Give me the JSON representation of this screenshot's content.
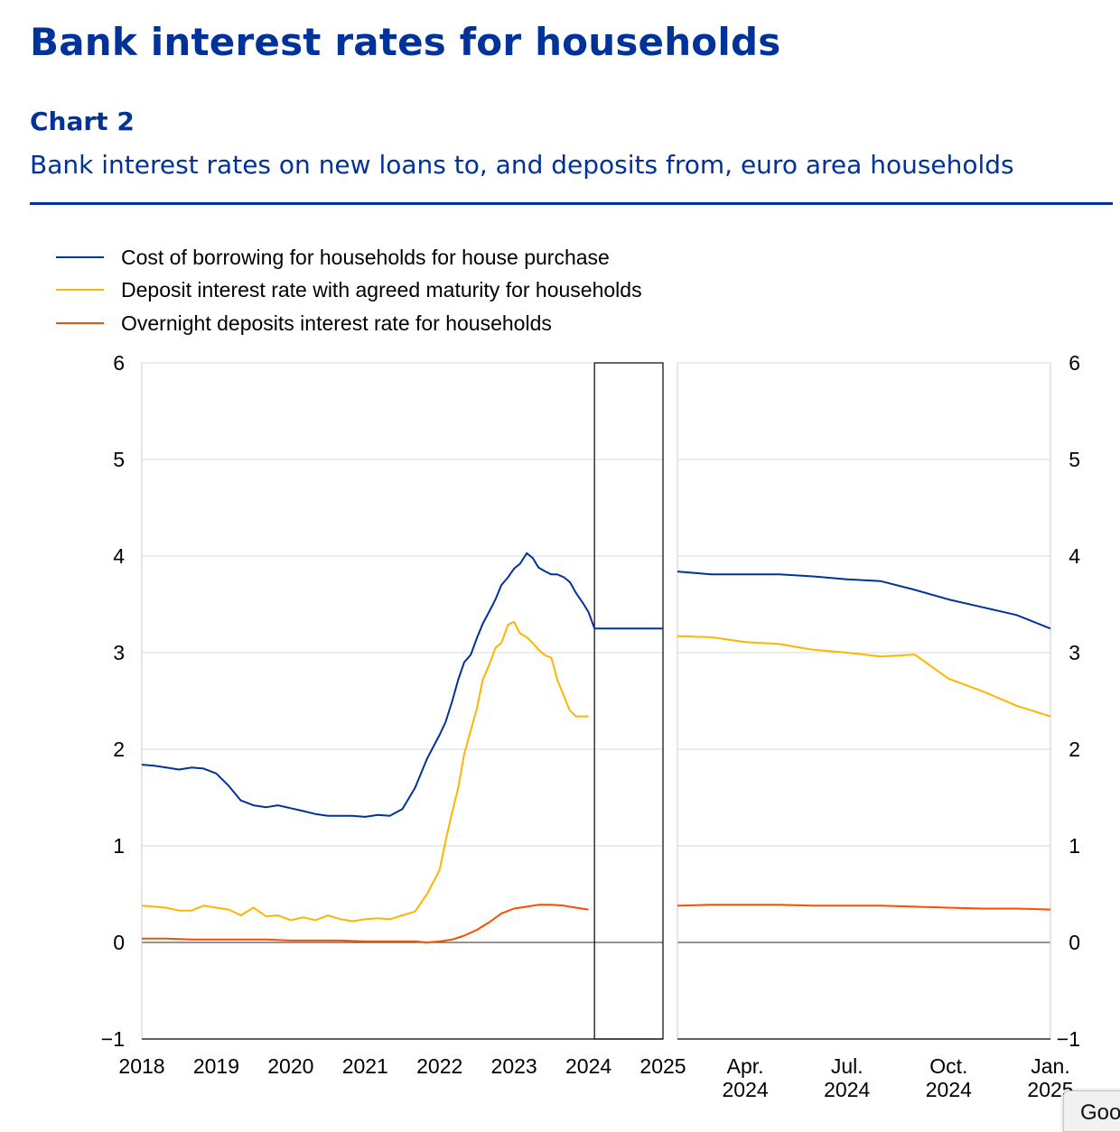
{
  "page": {
    "title": "Bank interest rates for households",
    "chart_label": "Chart 2",
    "chart_subtitle": "Bank interest rates on new loans to, and deposits from, euro area households"
  },
  "popup": {
    "label": "Goo"
  },
  "colors": {
    "borrowing": "#003299",
    "deposit_agreed": "#FFB400",
    "overnight": "#FF4B00",
    "grid": "#d9d9d9",
    "axis": "#000000"
  },
  "chart_data": {
    "type": "line",
    "title": "Bank interest rates on new loans to, and deposits from, euro area households",
    "xlabel": "",
    "ylabel": "",
    "ylim": [
      -1,
      6
    ],
    "yticks": [
      -1,
      0,
      1,
      2,
      3,
      4,
      5,
      6
    ],
    "grid": true,
    "legend_position": "top-left",
    "panels": [
      {
        "name": "full-period",
        "xlim": [
          2018.0,
          2025.0
        ],
        "xtick_labels": [
          "2018",
          "2019",
          "2020",
          "2021",
          "2022",
          "2023",
          "2024",
          "2025"
        ],
        "xtick_values": [
          2018,
          2019,
          2020,
          2021,
          2022,
          2023,
          2024,
          2025
        ],
        "highlight_range": [
          2024.08,
          2025.0
        ],
        "series": [
          {
            "name": "Cost of borrowing for households for house purchase",
            "color_key": "borrowing",
            "x": [
              2018.0,
              2018.17,
              2018.33,
              2018.5,
              2018.67,
              2018.83,
              2019.0,
              2019.17,
              2019.33,
              2019.5,
              2019.67,
              2019.83,
              2020.0,
              2020.17,
              2020.33,
              2020.5,
              2020.67,
              2020.83,
              2021.0,
              2021.17,
              2021.33,
              2021.5,
              2021.67,
              2021.83,
              2022.0,
              2022.08,
              2022.17,
              2022.25,
              2022.33,
              2022.42,
              2022.5,
              2022.58,
              2022.67,
              2022.75,
              2022.83,
              2022.92,
              2023.0,
              2023.08,
              2023.17,
              2023.25,
              2023.33,
              2023.42,
              2023.5,
              2023.58,
              2023.67,
              2023.75,
              2023.83,
              2023.92,
              2024.0,
              2024.08,
              2024.17,
              2024.25,
              2024.33,
              2024.42,
              2024.5,
              2024.58,
              2024.67,
              2024.75,
              2024.83,
              2024.92,
              2025.0
            ],
            "values": [
              1.84,
              1.83,
              1.81,
              1.79,
              1.81,
              1.8,
              1.75,
              1.62,
              1.47,
              1.42,
              1.4,
              1.42,
              1.39,
              1.36,
              1.33,
              1.31,
              1.31,
              1.31,
              1.3,
              1.32,
              1.31,
              1.38,
              1.6,
              1.9,
              2.15,
              2.28,
              2.5,
              2.72,
              2.9,
              2.98,
              3.15,
              3.3,
              3.43,
              3.55,
              3.7,
              3.78,
              3.87,
              3.92,
              4.03,
              3.98,
              3.88,
              3.84,
              3.81,
              3.81,
              3.78,
              3.73,
              3.62,
              3.52,
              3.42,
              3.25,
              3.25,
              3.25,
              3.25,
              3.25,
              3.25,
              3.25,
              3.25,
              3.25,
              3.25,
              3.25,
              3.25
            ]
          },
          {
            "name": "Deposit interest rate with agreed maturity for households",
            "color_key": "deposit_agreed",
            "x": [
              2018.0,
              2018.17,
              2018.33,
              2018.5,
              2018.67,
              2018.83,
              2019.0,
              2019.17,
              2019.33,
              2019.5,
              2019.67,
              2019.83,
              2020.0,
              2020.17,
              2020.33,
              2020.5,
              2020.67,
              2020.83,
              2021.0,
              2021.17,
              2021.33,
              2021.5,
              2021.67,
              2021.83,
              2022.0,
              2022.08,
              2022.17,
              2022.25,
              2022.33,
              2022.42,
              2022.5,
              2022.58,
              2022.67,
              2022.75,
              2022.83,
              2022.92,
              2023.0,
              2023.08,
              2023.17,
              2023.25,
              2023.33,
              2023.42,
              2023.5,
              2023.58,
              2023.67,
              2023.75,
              2023.83,
              2023.92,
              2024.0
            ],
            "values": [
              0.38,
              0.37,
              0.36,
              0.33,
              0.33,
              0.38,
              0.36,
              0.34,
              0.28,
              0.36,
              0.27,
              0.28,
              0.23,
              0.26,
              0.23,
              0.28,
              0.24,
              0.22,
              0.24,
              0.25,
              0.24,
              0.28,
              0.32,
              0.5,
              0.75,
              1.05,
              1.35,
              1.6,
              1.95,
              2.2,
              2.42,
              2.72,
              2.88,
              3.05,
              3.1,
              3.29,
              3.32,
              3.2,
              3.16,
              3.1,
              3.03,
              2.97,
              2.95,
              2.72,
              2.55,
              2.4,
              2.34,
              2.34,
              2.34
            ]
          },
          {
            "name": "Overnight deposits interest rate for households",
            "color_key": "overnight",
            "x": [
              2018.0,
              2018.33,
              2018.67,
              2019.0,
              2019.33,
              2019.67,
              2020.0,
              2020.33,
              2020.67,
              2021.0,
              2021.33,
              2021.67,
              2021.83,
              2022.0,
              2022.17,
              2022.33,
              2022.5,
              2022.67,
              2022.83,
              2023.0,
              2023.17,
              2023.33,
              2023.5,
              2023.67,
              2023.83,
              2024.0
            ],
            "values": [
              0.04,
              0.04,
              0.03,
              0.03,
              0.03,
              0.03,
              0.02,
              0.02,
              0.02,
              0.01,
              0.01,
              0.01,
              0.0,
              0.01,
              0.03,
              0.07,
              0.13,
              0.21,
              0.3,
              0.35,
              0.37,
              0.39,
              0.39,
              0.38,
              0.36,
              0.34
            ]
          }
        ]
      },
      {
        "name": "zoom-2024",
        "xlim": [
          0,
          11
        ],
        "xtick_labels": [
          "Apr.\n2024",
          "Jul.\n2024",
          "Oct.\n2024",
          "Jan.\n2025"
        ],
        "xtick_values": [
          2,
          5,
          8,
          11
        ],
        "series": [
          {
            "name": "Cost of borrowing for households for house purchase",
            "color_key": "borrowing",
            "x": [
              0,
              1,
              2,
              3,
              4,
              5,
              6,
              7,
              8,
              9,
              10,
              11
            ],
            "values": [
              3.84,
              3.81,
              3.81,
              3.81,
              3.79,
              3.76,
              3.74,
              3.65,
              3.55,
              3.47,
              3.39,
              3.25
            ]
          },
          {
            "name": "Deposit interest rate with agreed maturity for households",
            "color_key": "deposit_agreed",
            "x": [
              0,
              1,
              2,
              3,
              4,
              5,
              6,
              7,
              8,
              9,
              10,
              11
            ],
            "values": [
              3.17,
              3.16,
              3.11,
              3.09,
              3.03,
              3.0,
              2.96,
              2.98,
              2.73,
              2.6,
              2.45,
              2.34
            ]
          },
          {
            "name": "Overnight deposits interest rate for households",
            "color_key": "overnight",
            "x": [
              0,
              1,
              2,
              3,
              4,
              5,
              6,
              7,
              8,
              9,
              10,
              11
            ],
            "values": [
              0.38,
              0.39,
              0.39,
              0.39,
              0.38,
              0.38,
              0.38,
              0.37,
              0.36,
              0.35,
              0.35,
              0.34
            ]
          }
        ]
      }
    ],
    "legend": [
      {
        "label": "Cost of borrowing for households for house purchase",
        "color_key": "borrowing"
      },
      {
        "label": "Deposit interest rate with agreed maturity for households",
        "color_key": "deposit_agreed"
      },
      {
        "label": "Overnight deposits interest rate for households",
        "color_key": "overnight"
      }
    ]
  }
}
